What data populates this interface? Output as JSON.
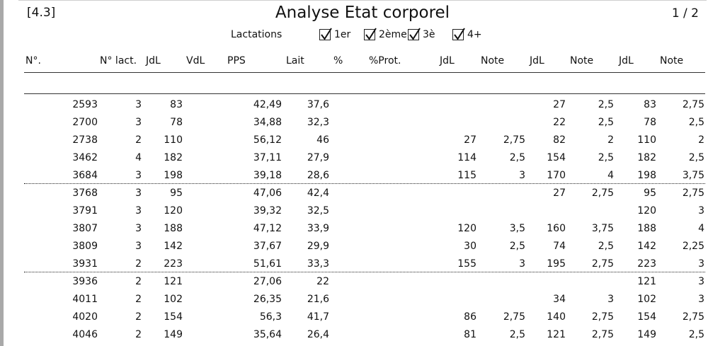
{
  "report": {
    "ref": "[4.3]",
    "title": "Analyse Etat corporel",
    "page": "1 / 2"
  },
  "lactations": {
    "label": "Lactations",
    "options": [
      {
        "label": "1er",
        "checked": true
      },
      {
        "label": "2ème",
        "checked": true
      },
      {
        "label": "3è",
        "checked": true
      },
      {
        "label": "4+",
        "checked": true
      }
    ]
  },
  "columns": [
    "N°.",
    "N° lact.",
    "JdL",
    "VdL",
    "PPS",
    "Lait",
    "%",
    "%Prot.",
    "JdL",
    "Note",
    "JdL",
    "Note",
    "JdL",
    "Note"
  ],
  "rows": [
    [
      "2593",
      "3",
      "83",
      "",
      "42,49",
      "37,6",
      "",
      "",
      "",
      "",
      "27",
      "2,5",
      "83",
      "2,75"
    ],
    [
      "2700",
      "3",
      "78",
      "",
      "34,88",
      "32,3",
      "",
      "",
      "",
      "",
      "22",
      "2,5",
      "78",
      "2,5"
    ],
    [
      "2738",
      "2",
      "110",
      "",
      "56,12",
      "46",
      "",
      "",
      "27",
      "2,75",
      "82",
      "2",
      "110",
      "2"
    ],
    [
      "3462",
      "4",
      "182",
      "",
      "37,11",
      "27,9",
      "",
      "",
      "114",
      "2,5",
      "154",
      "2,5",
      "182",
      "2,5"
    ],
    [
      "3684",
      "3",
      "198",
      "",
      "39,18",
      "28,6",
      "",
      "",
      "115",
      "3",
      "170",
      "4",
      "198",
      "3,75"
    ],
    [
      "3768",
      "3",
      "95",
      "",
      "47,06",
      "42,4",
      "",
      "",
      "",
      "",
      "27",
      "2,75",
      "95",
      "2,75"
    ],
    [
      "3791",
      "3",
      "120",
      "",
      "39,32",
      "32,5",
      "",
      "",
      "",
      "",
      "",
      "",
      "120",
      "3"
    ],
    [
      "3807",
      "3",
      "188",
      "",
      "47,12",
      "33,9",
      "",
      "",
      "120",
      "3,5",
      "160",
      "3,75",
      "188",
      "4"
    ],
    [
      "3809",
      "3",
      "142",
      "",
      "37,67",
      "29,9",
      "",
      "",
      "30",
      "2,5",
      "74",
      "2,5",
      "142",
      "2,25"
    ],
    [
      "3931",
      "2",
      "223",
      "",
      "51,61",
      "33,3",
      "",
      "",
      "155",
      "3",
      "195",
      "2,75",
      "223",
      "3"
    ],
    [
      "3936",
      "2",
      "121",
      "",
      "27,06",
      "22",
      "",
      "",
      "",
      "",
      "",
      "",
      "121",
      "3"
    ],
    [
      "4011",
      "2",
      "102",
      "",
      "26,35",
      "21,6",
      "",
      "",
      "",
      "",
      "34",
      "3",
      "102",
      "3"
    ],
    [
      "4020",
      "2",
      "154",
      "",
      "56,3",
      "41,7",
      "",
      "",
      "86",
      "2,75",
      "140",
      "2,75",
      "154",
      "2,75"
    ],
    [
      "4046",
      "2",
      "149",
      "",
      "35,64",
      "26,4",
      "",
      "",
      "81",
      "2,5",
      "121",
      "2,75",
      "149",
      "2,5"
    ]
  ],
  "row_groups": [
    5,
    5,
    4
  ]
}
